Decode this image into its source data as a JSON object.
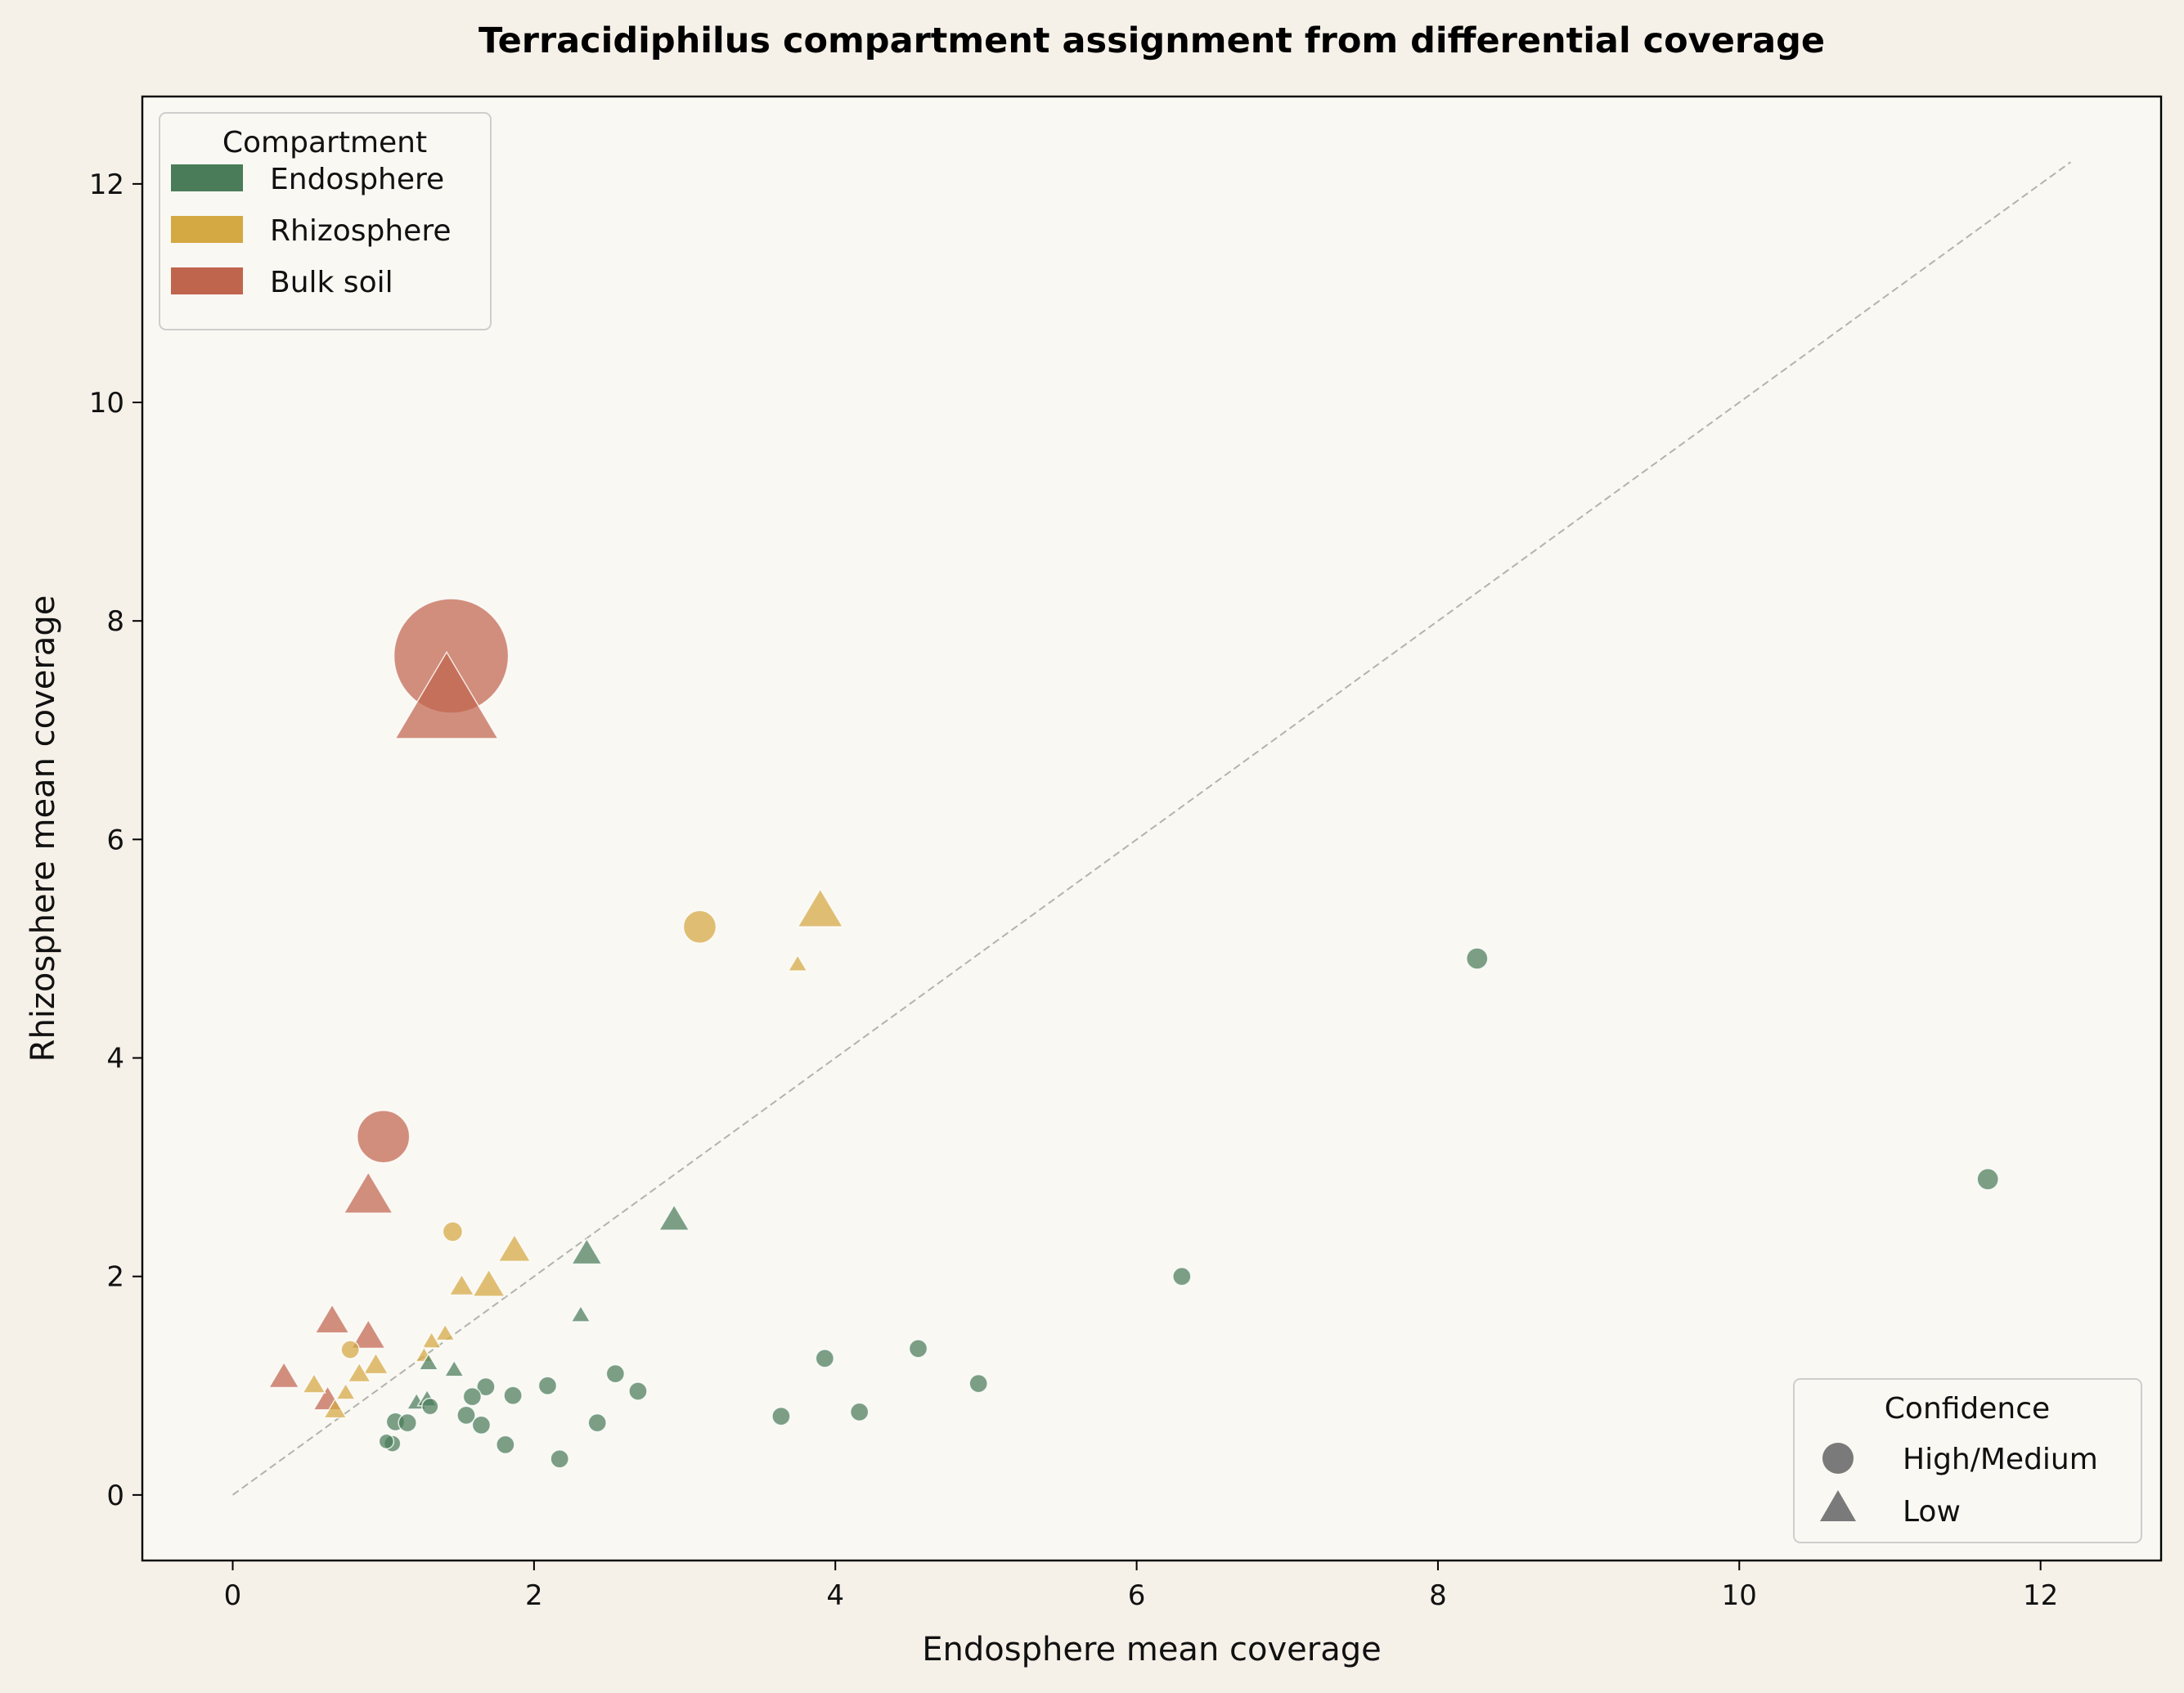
{
  "chart_data": {
    "type": "scatter",
    "title": "Terracidiphilus compartment assignment from differential coverage",
    "xlabel": "Endosphere mean coverage",
    "ylabel": "Rhizosphere mean coverage",
    "xlim": [
      -0.6,
      12.8
    ],
    "ylim": [
      -0.6,
      12.8
    ],
    "xticks": [
      0,
      2,
      4,
      6,
      8,
      10,
      12
    ],
    "yticks": [
      0,
      2,
      4,
      6,
      8,
      10,
      12
    ],
    "diagonal": [
      0,
      12.2
    ],
    "colors": {
      "Endosphere": "#4a7c59",
      "Rhizosphere": "#d4a843",
      "Bulk soil": "#c0654d"
    },
    "legend_compartment": {
      "title": "Compartment",
      "entries": [
        "Endosphere",
        "Rhizosphere",
        "Bulk soil"
      ],
      "position": "upper-left"
    },
    "legend_confidence": {
      "title": "Confidence",
      "entries": [
        {
          "label": "High/Medium",
          "marker": "circle"
        },
        {
          "label": "Low",
          "marker": "triangle"
        }
      ],
      "position": "lower-right"
    },
    "points": [
      {
        "x": 1.45,
        "y": 7.68,
        "c": "Bulk soil",
        "m": "circle",
        "s": 7
      },
      {
        "x": 1.42,
        "y": 7.22,
        "c": "Bulk soil",
        "m": "triangle",
        "s": 5.5
      },
      {
        "x": 1.0,
        "y": 3.28,
        "c": "Bulk soil",
        "m": "circle",
        "s": 3.2
      },
      {
        "x": 0.9,
        "y": 2.72,
        "c": "Bulk soil",
        "m": "triangle",
        "s": 2.6
      },
      {
        "x": 0.66,
        "y": 1.58,
        "c": "Bulk soil",
        "m": "triangle",
        "s": 1.8
      },
      {
        "x": 0.9,
        "y": 1.44,
        "c": "Bulk soil",
        "m": "triangle",
        "s": 1.8
      },
      {
        "x": 0.34,
        "y": 1.07,
        "c": "Bulk soil",
        "m": "triangle",
        "s": 1.6
      },
      {
        "x": 0.63,
        "y": 0.86,
        "c": "Bulk soil",
        "m": "triangle",
        "s": 1.5
      },
      {
        "x": 3.1,
        "y": 5.2,
        "c": "Rhizosphere",
        "m": "circle",
        "s": 2.0
      },
      {
        "x": 3.9,
        "y": 5.33,
        "c": "Rhizosphere",
        "m": "triangle",
        "s": 2.4
      },
      {
        "x": 3.75,
        "y": 4.85,
        "c": "Rhizosphere",
        "m": "triangle",
        "s": 1.0
      },
      {
        "x": 1.46,
        "y": 2.41,
        "c": "Rhizosphere",
        "m": "circle",
        "s": 1.2
      },
      {
        "x": 1.87,
        "y": 2.23,
        "c": "Rhizosphere",
        "m": "triangle",
        "s": 1.7
      },
      {
        "x": 1.52,
        "y": 1.9,
        "c": "Rhizosphere",
        "m": "triangle",
        "s": 1.3
      },
      {
        "x": 1.7,
        "y": 1.91,
        "c": "Rhizosphere",
        "m": "triangle",
        "s": 1.7
      },
      {
        "x": 1.41,
        "y": 1.47,
        "c": "Rhizosphere",
        "m": "triangle",
        "s": 1.0
      },
      {
        "x": 1.32,
        "y": 1.4,
        "c": "Rhizosphere",
        "m": "triangle",
        "s": 1.0
      },
      {
        "x": 1.27,
        "y": 1.27,
        "c": "Rhizosphere",
        "m": "triangle",
        "s": 0.9
      },
      {
        "x": 0.78,
        "y": 1.33,
        "c": "Rhizosphere",
        "m": "circle",
        "s": 1.1
      },
      {
        "x": 0.95,
        "y": 1.18,
        "c": "Rhizosphere",
        "m": "triangle",
        "s": 1.3
      },
      {
        "x": 0.84,
        "y": 1.1,
        "c": "Rhizosphere",
        "m": "triangle",
        "s": 1.2
      },
      {
        "x": 0.54,
        "y": 1.0,
        "c": "Rhizosphere",
        "m": "triangle",
        "s": 1.2
      },
      {
        "x": 0.75,
        "y": 0.93,
        "c": "Rhizosphere",
        "m": "triangle",
        "s": 1.0
      },
      {
        "x": 0.68,
        "y": 0.77,
        "c": "Rhizosphere",
        "m": "triangle",
        "s": 1.2
      },
      {
        "x": 8.26,
        "y": 4.91,
        "c": "Endosphere",
        "m": "circle",
        "s": 1.3
      },
      {
        "x": 11.65,
        "y": 2.89,
        "c": "Endosphere",
        "m": "circle",
        "s": 1.3
      },
      {
        "x": 6.3,
        "y": 2.0,
        "c": "Endosphere",
        "m": "circle",
        "s": 1.1
      },
      {
        "x": 2.93,
        "y": 2.51,
        "c": "Endosphere",
        "m": "triangle",
        "s": 1.6
      },
      {
        "x": 2.35,
        "y": 2.2,
        "c": "Endosphere",
        "m": "triangle",
        "s": 1.6
      },
      {
        "x": 2.31,
        "y": 1.64,
        "c": "Endosphere",
        "m": "triangle",
        "s": 1.0
      },
      {
        "x": 1.3,
        "y": 1.2,
        "c": "Endosphere",
        "m": "triangle",
        "s": 1.0
      },
      {
        "x": 1.47,
        "y": 1.14,
        "c": "Endosphere",
        "m": "triangle",
        "s": 1.0
      },
      {
        "x": 3.93,
        "y": 1.25,
        "c": "Endosphere",
        "m": "circle",
        "s": 1.1
      },
      {
        "x": 4.55,
        "y": 1.34,
        "c": "Endosphere",
        "m": "circle",
        "s": 1.1
      },
      {
        "x": 4.95,
        "y": 1.02,
        "c": "Endosphere",
        "m": "circle",
        "s": 1.1
      },
      {
        "x": 2.54,
        "y": 1.11,
        "c": "Endosphere",
        "m": "circle",
        "s": 1.1
      },
      {
        "x": 2.09,
        "y": 1.0,
        "c": "Endosphere",
        "m": "circle",
        "s": 1.1
      },
      {
        "x": 2.69,
        "y": 0.95,
        "c": "Endosphere",
        "m": "circle",
        "s": 1.1
      },
      {
        "x": 1.68,
        "y": 0.99,
        "c": "Endosphere",
        "m": "circle",
        "s": 1.1
      },
      {
        "x": 1.59,
        "y": 0.9,
        "c": "Endosphere",
        "m": "circle",
        "s": 1.1
      },
      {
        "x": 1.86,
        "y": 0.91,
        "c": "Endosphere",
        "m": "circle",
        "s": 1.1
      },
      {
        "x": 1.22,
        "y": 0.84,
        "c": "Endosphere",
        "m": "triangle",
        "s": 1.0
      },
      {
        "x": 1.29,
        "y": 0.87,
        "c": "Endosphere",
        "m": "triangle",
        "s": 1.0
      },
      {
        "x": 1.31,
        "y": 0.81,
        "c": "Endosphere",
        "m": "circle",
        "s": 1.0
      },
      {
        "x": 1.55,
        "y": 0.73,
        "c": "Endosphere",
        "m": "circle",
        "s": 1.1
      },
      {
        "x": 1.65,
        "y": 0.64,
        "c": "Endosphere",
        "m": "circle",
        "s": 1.1
      },
      {
        "x": 1.08,
        "y": 0.67,
        "c": "Endosphere",
        "m": "circle",
        "s": 1.1
      },
      {
        "x": 1.16,
        "y": 0.66,
        "c": "Endosphere",
        "m": "circle",
        "s": 1.1
      },
      {
        "x": 1.06,
        "y": 0.47,
        "c": "Endosphere",
        "m": "circle",
        "s": 1.0
      },
      {
        "x": 1.02,
        "y": 0.49,
        "c": "Endosphere",
        "m": "circle",
        "s": 0.9
      },
      {
        "x": 1.81,
        "y": 0.46,
        "c": "Endosphere",
        "m": "circle",
        "s": 1.1
      },
      {
        "x": 2.42,
        "y": 0.66,
        "c": "Endosphere",
        "m": "circle",
        "s": 1.1
      },
      {
        "x": 3.64,
        "y": 0.72,
        "c": "Endosphere",
        "m": "circle",
        "s": 1.1
      },
      {
        "x": 4.16,
        "y": 0.76,
        "c": "Endosphere",
        "m": "circle",
        "s": 1.1
      },
      {
        "x": 2.17,
        "y": 0.33,
        "c": "Endosphere",
        "m": "circle",
        "s": 1.1
      }
    ]
  }
}
